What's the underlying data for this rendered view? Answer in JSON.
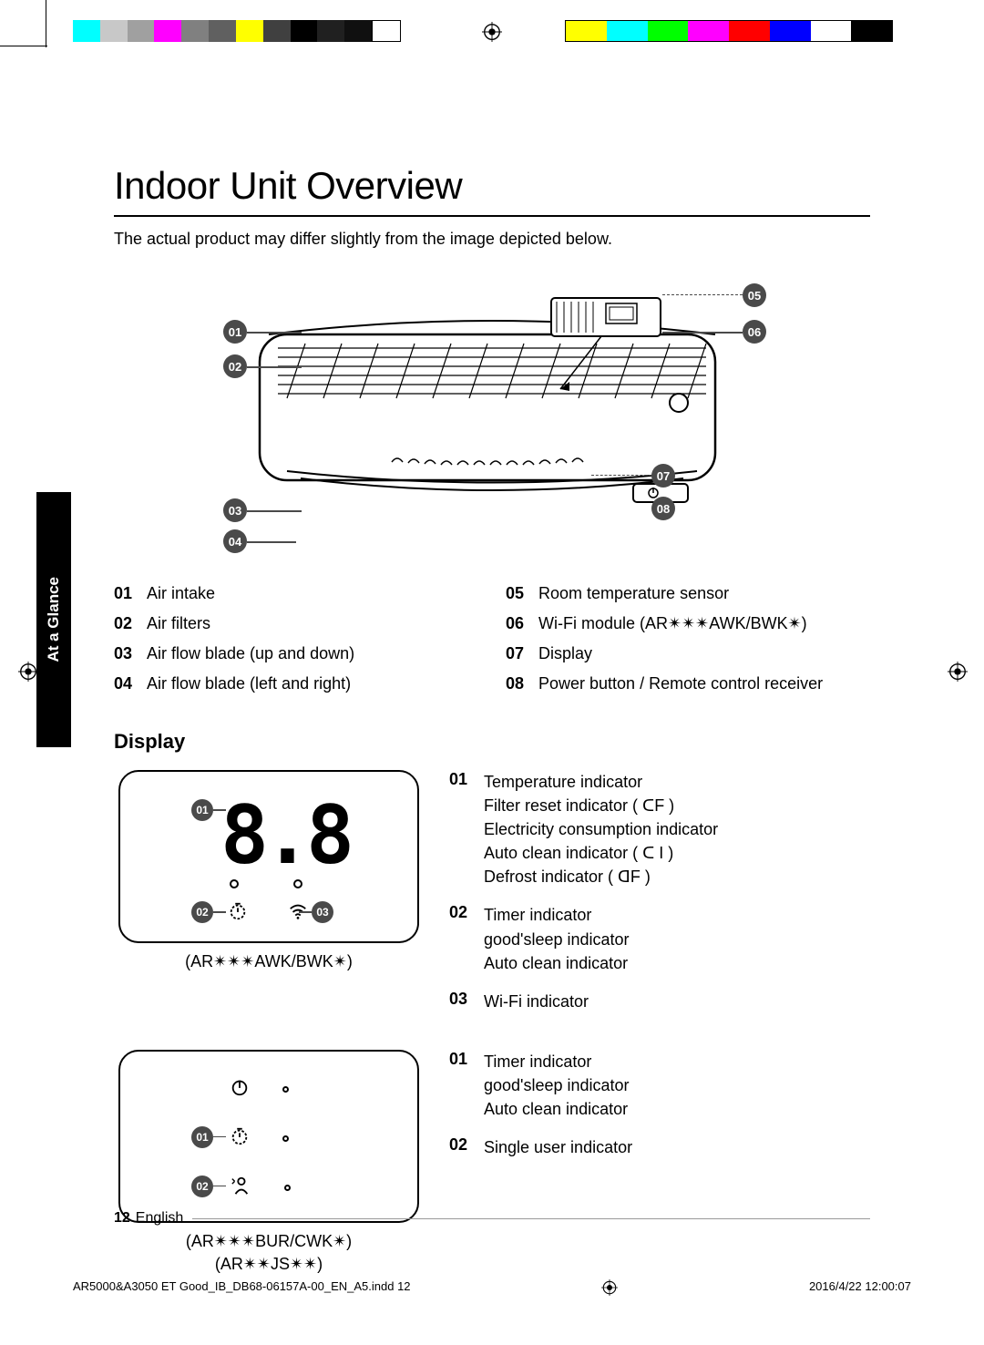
{
  "title": "Indoor Unit Overview",
  "intro": "The actual product may differ slightly from the image depicted below.",
  "tab": "At a Glance",
  "unit_callouts": {
    "c01": "01",
    "c02": "02",
    "c03": "03",
    "c04": "04",
    "c05": "05",
    "c06": "06",
    "c07": "07",
    "c08": "08"
  },
  "unit_legend_left": [
    {
      "n": "01",
      "t": "Air intake"
    },
    {
      "n": "02",
      "t": "Air filters"
    },
    {
      "n": "03",
      "t": "Air flow blade (up and down)"
    },
    {
      "n": "04",
      "t": "Air flow blade (left and right)"
    }
  ],
  "unit_legend_right": [
    {
      "n": "05",
      "t": "Room temperature sensor"
    },
    {
      "n": "06",
      "t": "Wi-Fi module (AR✴✴✴AWK/BWK✴)"
    },
    {
      "n": "07",
      "t": "Display"
    },
    {
      "n": "08",
      "t": "Power button / Remote control receiver"
    }
  ],
  "display_heading": "Display",
  "panel_a_caption": "(AR✴✴✴AWK/BWK✴)",
  "panel_a_callouts": {
    "c01": "01",
    "c02": "02",
    "c03": "03"
  },
  "panel_a_legend": [
    {
      "n": "01",
      "t": "Temperature indicator\nFilter reset indicator ( ᑕF )\nElectricity consumption indicator\nAuto clean indicator ( ᑕ I )\nDefrost indicator ( ᗡF )"
    },
    {
      "n": "02",
      "t": "Timer indicator\ngood'sleep indicator\nAuto clean indicator"
    },
    {
      "n": "03",
      "t": "Wi-Fi indicator"
    }
  ],
  "panel_b_caption1": "(AR✴✴✴BUR/CWK✴)",
  "panel_b_caption2": "(AR✴✴JS✴✴)",
  "panel_b_callouts": {
    "c01": "01",
    "c02": "02"
  },
  "panel_b_legend": [
    {
      "n": "01",
      "t": "Timer indicator\ngood'sleep indicator\nAuto clean indicator"
    },
    {
      "n": "02",
      "t": "Single user indicator"
    }
  ],
  "footer": {
    "page": "12",
    "lang": "English"
  },
  "slug": {
    "file": "AR5000&A3050 ET Good_IB_DB68-06157A-00_EN_A5.indd   12",
    "date": "2016/4/22   12:00:07"
  },
  "colors": {
    "callout": "#4a4a4a",
    "colorbar": [
      "#00ffff",
      "#ff00ff",
      "#ffff00",
      "#000000",
      "#ffffff",
      "#ffff00",
      "#00ffff",
      "#00ff00",
      "#ff00ff",
      "#ff0000",
      "#0000ff",
      "#ffffff",
      "#000000"
    ]
  }
}
